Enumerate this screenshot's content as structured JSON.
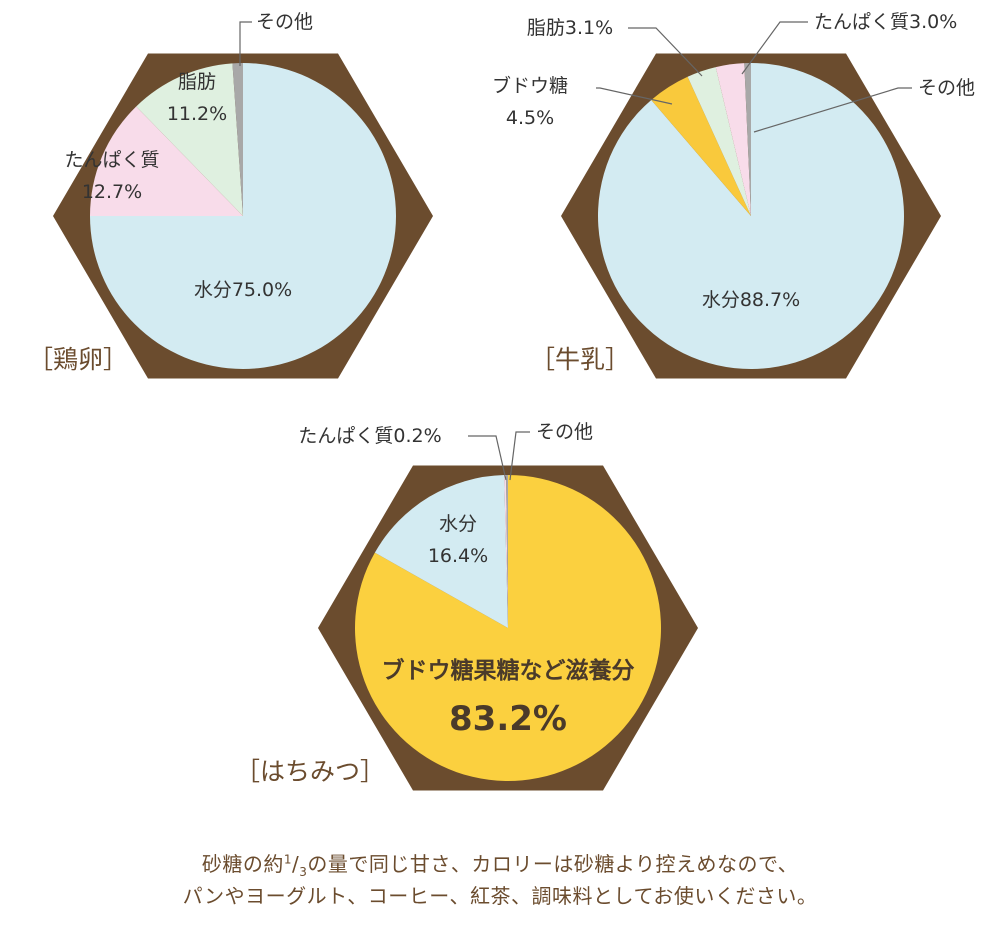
{
  "colors": {
    "hexagon": "#6b4c2e",
    "water": "#d3ebf2",
    "protein": "#f8dcea",
    "fat": "#dff0e0",
    "glucose": "#f9c93c",
    "honey_sugar": "#fbd03f",
    "other": "#a8a8a8",
    "bracket_text": "#6b4c2e",
    "label_text": "#333333"
  },
  "chart_data": [
    {
      "type": "pie",
      "title": "［鶏卵］",
      "slices": [
        {
          "key": "water",
          "label": "水分75.0%",
          "value": 75.0,
          "color": "#d3ebf2"
        },
        {
          "key": "protein",
          "label": "たんぱく質",
          "value_label": "12.7%",
          "value": 12.7,
          "color": "#f8dcea"
        },
        {
          "key": "fat",
          "label": "脂肪",
          "value_label": "11.2%",
          "value": 11.2,
          "color": "#dff0e0"
        },
        {
          "key": "other",
          "label": "その他",
          "value": 1.1,
          "color": "#a8a8a8"
        }
      ]
    },
    {
      "type": "pie",
      "title": "［牛乳］",
      "slices": [
        {
          "key": "water",
          "label": "水分88.7%",
          "value": 88.7,
          "color": "#d3ebf2"
        },
        {
          "key": "glucose",
          "label": "ブドウ糖",
          "value_label": "4.5%",
          "value": 4.5,
          "color": "#f9c93c"
        },
        {
          "key": "fat",
          "label": "脂肪3.1%",
          "value": 3.1,
          "color": "#dff0e0"
        },
        {
          "key": "protein",
          "label": "たんぱく質3.0%",
          "value": 3.0,
          "color": "#f8dcea"
        },
        {
          "key": "other",
          "label": "その他",
          "value": 0.7,
          "color": "#a8a8a8"
        }
      ]
    },
    {
      "type": "pie",
      "title": "［はちみつ］",
      "slices": [
        {
          "key": "sugar",
          "label": "ブドウ糖果糖など滋養分",
          "value_label": "83.2%",
          "value": 83.2,
          "color": "#fbd03f"
        },
        {
          "key": "water",
          "label": "水分",
          "value_label": "16.4%",
          "value": 16.4,
          "color": "#d3ebf2"
        },
        {
          "key": "protein",
          "label": "たんぱく質0.2%",
          "value": 0.2,
          "color": "#f8dcea"
        },
        {
          "key": "other",
          "label": "その他",
          "value": 0.2,
          "color": "#a8a8a8"
        }
      ]
    }
  ],
  "caption": {
    "line1_prefix": "砂糖の約",
    "frac_num": "1",
    "frac_slash": "/",
    "frac_den": "3",
    "line1_suffix": "の量で同じ甘さ、カロリーは砂糖より控えめなので、",
    "line2": "パンやヨーグルト、コーヒー、紅茶、調味料としてお使いください。"
  }
}
